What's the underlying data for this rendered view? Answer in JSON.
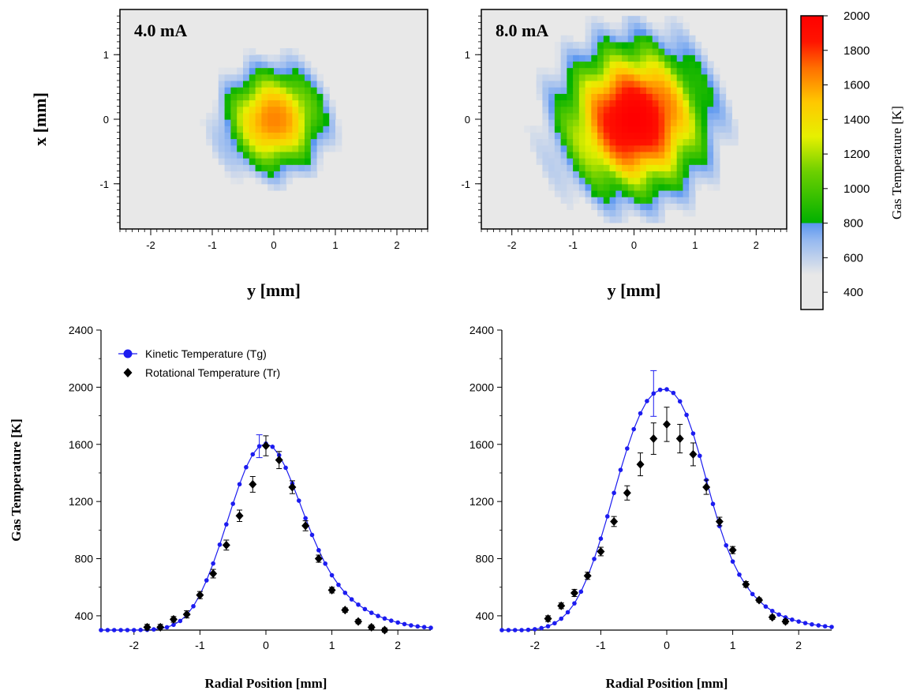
{
  "chart_data": [
    {
      "type": "heatmap",
      "panel_label": "4.0 mA",
      "xlabel": "y [mm]",
      "ylabel": "x [mm]",
      "xlim": [
        -2.5,
        2.5
      ],
      "ylim": [
        -1.7,
        1.7
      ],
      "xticks": [
        "-2",
        "-1",
        "0",
        "1",
        "2"
      ],
      "yticks": [
        "-1",
        "0",
        "1"
      ],
      "peak_temperature": 1650,
      "spot_radius": 0.75,
      "background_temperature": 400
    },
    {
      "type": "heatmap",
      "panel_label": "8.0 mA",
      "xlabel": "y [mm]",
      "ylabel": "",
      "xlim": [
        -2.5,
        2.5
      ],
      "ylim": [
        -1.7,
        1.7
      ],
      "xticks": [
        "-2",
        "-1",
        "0",
        "1",
        "2"
      ],
      "yticks": [
        "-1",
        "0",
        "1"
      ],
      "peak_temperature": 2000,
      "spot_radius": 1.1,
      "background_temperature": 400
    },
    {
      "type": "line",
      "xlabel": "Radial Position [mm]",
      "ylabel": "Gas Temperature [K]",
      "xlim": [
        -2.5,
        2.5
      ],
      "ylim": [
        300,
        2400
      ],
      "xticks": [
        "-2",
        "-1",
        "0",
        "1",
        "2"
      ],
      "yticks": [
        "400",
        "800",
        "1200",
        "1600",
        "2000",
        "2400"
      ],
      "legend_position": "top-left",
      "series": [
        {
          "name": "Kinetic Temperature (Tg)",
          "color": "#1c1cf0",
          "x": [
            -2.5,
            -2.4,
            -2.3,
            -2.2,
            -2.1,
            -2.0,
            -1.9,
            -1.8,
            -1.7,
            -1.6,
            -1.5,
            -1.4,
            -1.3,
            -1.2,
            -1.1,
            -1.0,
            -0.9,
            -0.8,
            -0.7,
            -0.6,
            -0.5,
            -0.4,
            -0.3,
            -0.2,
            -0.1,
            0.0,
            0.1,
            0.2,
            0.3,
            0.4,
            0.5,
            0.6,
            0.7,
            0.8,
            0.9,
            1.0,
            1.1,
            1.2,
            1.3,
            1.4,
            1.5,
            1.6,
            1.7,
            1.8,
            1.9,
            2.0,
            2.1,
            2.2,
            2.3,
            2.4,
            2.5
          ],
          "y": [
            300,
            300,
            300,
            300,
            300,
            300,
            301,
            302,
            305,
            311,
            320,
            337,
            364,
            406,
            467,
            547,
            648,
            766,
            898,
            1040,
            1184,
            1321,
            1440,
            1530,
            1587,
            1605,
            1583,
            1524,
            1436,
            1326,
            1206,
            1083,
            966,
            859,
            765,
            684,
            617,
            561,
            515,
            478,
            447,
            421,
            399,
            381,
            366,
            353,
            342,
            333,
            326,
            321,
            316
          ],
          "error_bars": [
            {
              "x": -0.1,
              "err": 80
            }
          ]
        },
        {
          "name": "Rotational Temperature (Tr)",
          "color": "#000000",
          "x": [
            -1.8,
            -1.6,
            -1.4,
            -1.2,
            -1.0,
            -0.8,
            -0.6,
            -0.4,
            -0.2,
            0.0,
            0.2,
            0.4,
            0.6,
            0.8,
            1.0,
            1.2,
            1.4,
            1.6,
            1.8
          ],
          "y": [
            320,
            320,
            375,
            410,
            545,
            695,
            895,
            1100,
            1320,
            1590,
            1490,
            1300,
            1030,
            800,
            580,
            440,
            360,
            320,
            300
          ],
          "err": [
            20,
            20,
            20,
            25,
            25,
            30,
            35,
            40,
            55,
            70,
            60,
            45,
            35,
            25,
            20,
            15,
            15,
            15,
            15
          ]
        }
      ]
    },
    {
      "type": "line",
      "xlabel": "Radial Position [mm]",
      "ylabel": "",
      "xlim": [
        -2.5,
        2.5
      ],
      "ylim": [
        300,
        2400
      ],
      "xticks": [
        "-2",
        "-1",
        "0",
        "1",
        "2"
      ],
      "yticks": [
        "400",
        "800",
        "1200",
        "1600",
        "2000",
        "2400"
      ],
      "series": [
        {
          "name": "Kinetic Temperature (Tg)",
          "color": "#1c1cf0",
          "x": [
            -2.5,
            -2.4,
            -2.3,
            -2.2,
            -2.1,
            -2.0,
            -1.9,
            -1.8,
            -1.7,
            -1.6,
            -1.5,
            -1.4,
            -1.3,
            -1.2,
            -1.1,
            -1.0,
            -0.9,
            -0.8,
            -0.7,
            -0.6,
            -0.5,
            -0.4,
            -0.3,
            -0.2,
            -0.1,
            0.0,
            0.1,
            0.2,
            0.3,
            0.4,
            0.5,
            0.6,
            0.7,
            0.8,
            0.9,
            1.0,
            1.1,
            1.2,
            1.3,
            1.4,
            1.5,
            1.6,
            1.7,
            1.8,
            1.9,
            2.0,
            2.1,
            2.2,
            2.3,
            2.4,
            2.5
          ],
          "y": [
            300,
            300,
            300,
            300,
            302,
            306,
            314,
            327,
            348,
            380,
            425,
            487,
            569,
            673,
            798,
            940,
            1096,
            1260,
            1421,
            1571,
            1706,
            1817,
            1903,
            1956,
            1982,
            1985,
            1960,
            1901,
            1806,
            1676,
            1520,
            1351,
            1183,
            1028,
            893,
            780,
            688,
            613,
            552,
            504,
            465,
            434,
            409,
            389,
            373,
            360,
            349,
            340,
            333,
            327,
            322
          ],
          "error_bars": [
            {
              "x": -0.2,
              "err": 160
            }
          ]
        },
        {
          "name": "Rotational Temperature (Tr)",
          "color": "#000000",
          "x": [
            -1.8,
            -1.6,
            -1.4,
            -1.2,
            -1.0,
            -0.8,
            -0.6,
            -0.4,
            -0.2,
            0.0,
            0.2,
            0.4,
            0.6,
            0.8,
            1.0,
            1.2,
            1.4,
            1.6,
            1.8
          ],
          "y": [
            380,
            470,
            560,
            680,
            850,
            1060,
            1260,
            1460,
            1640,
            1740,
            1640,
            1530,
            1300,
            1060,
            860,
            620,
            510,
            390,
            360
          ],
          "err": [
            20,
            20,
            25,
            25,
            30,
            35,
            50,
            80,
            110,
            120,
            100,
            80,
            50,
            30,
            25,
            20,
            15,
            15,
            15
          ]
        }
      ]
    },
    {
      "type": "heatmap",
      "role": "colorbar",
      "title": "Gas Temperature [K]",
      "range": [
        300,
        2000
      ],
      "ticks": [
        "400",
        "600",
        "800",
        "1000",
        "1200",
        "1400",
        "1600",
        "1800",
        "2000"
      ],
      "colors": [
        "#e8e8e8",
        "#5a9af0",
        "#00b000",
        "#9ae000",
        "#f0f000",
        "#ff9000",
        "#ff0000"
      ]
    }
  ]
}
